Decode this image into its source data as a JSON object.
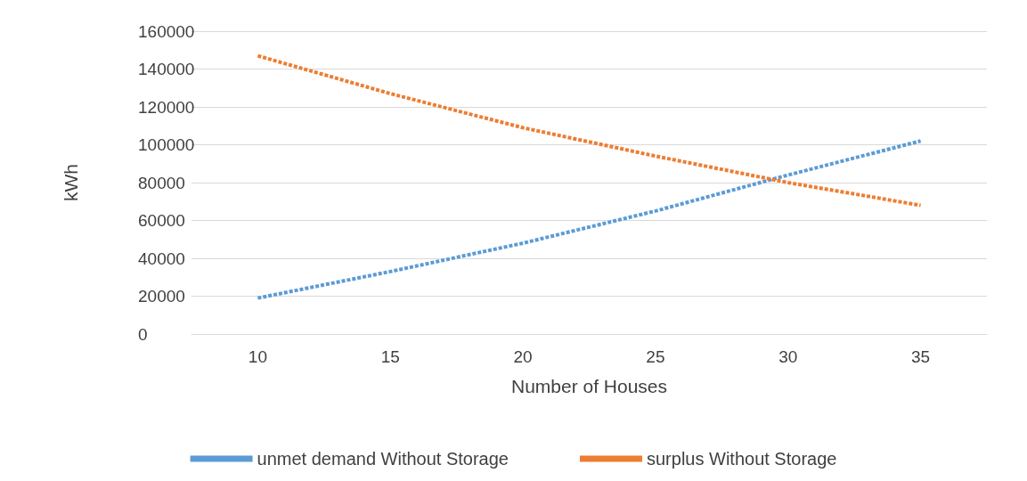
{
  "chart_data": {
    "type": "line",
    "xlabel": "Number of Houses",
    "ylabel": "kWh",
    "categories": [
      "10",
      "15",
      "20",
      "25",
      "30",
      "35"
    ],
    "series": [
      {
        "name": "unmet demand Without Storage",
        "color": "#5b9bd5",
        "values": [
          19000,
          33000,
          48000,
          65000,
          84000,
          102000
        ]
      },
      {
        "name": "surplus Without Storage",
        "color": "#ed7d31",
        "values": [
          147000,
          127000,
          109000,
          94000,
          80000,
          68000
        ]
      }
    ],
    "ylim": [
      0,
      160000
    ],
    "yticks": [
      0,
      20000,
      40000,
      60000,
      80000,
      100000,
      120000,
      140000,
      160000
    ],
    "grid": "y",
    "legend": "bottom",
    "marker": "none",
    "line_style": "dashed"
  }
}
